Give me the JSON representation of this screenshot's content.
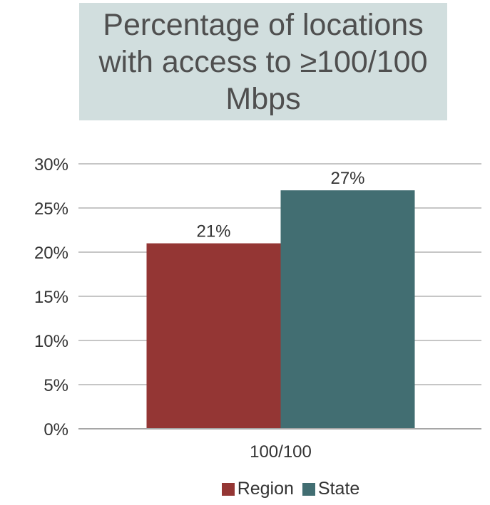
{
  "chart_data": {
    "type": "bar",
    "title": "Percentage of locations\nwith access to ≥100/100\nMbps",
    "categories": [
      "100/100"
    ],
    "series": [
      {
        "name": "Region",
        "values": [
          21
        ],
        "color": "#943634",
        "label": "21%"
      },
      {
        "name": "State",
        "values": [
          27
        ],
        "color": "#426e72",
        "label": "27%"
      }
    ],
    "ylim": [
      0,
      30
    ],
    "yticks": [
      "0%",
      "5%",
      "10%",
      "15%",
      "20%",
      "25%",
      "30%"
    ],
    "ytick_values": [
      0,
      5,
      10,
      15,
      20,
      25,
      30
    ],
    "grid": true,
    "legend_position": "bottom",
    "xlabel": "",
    "ylabel": ""
  }
}
